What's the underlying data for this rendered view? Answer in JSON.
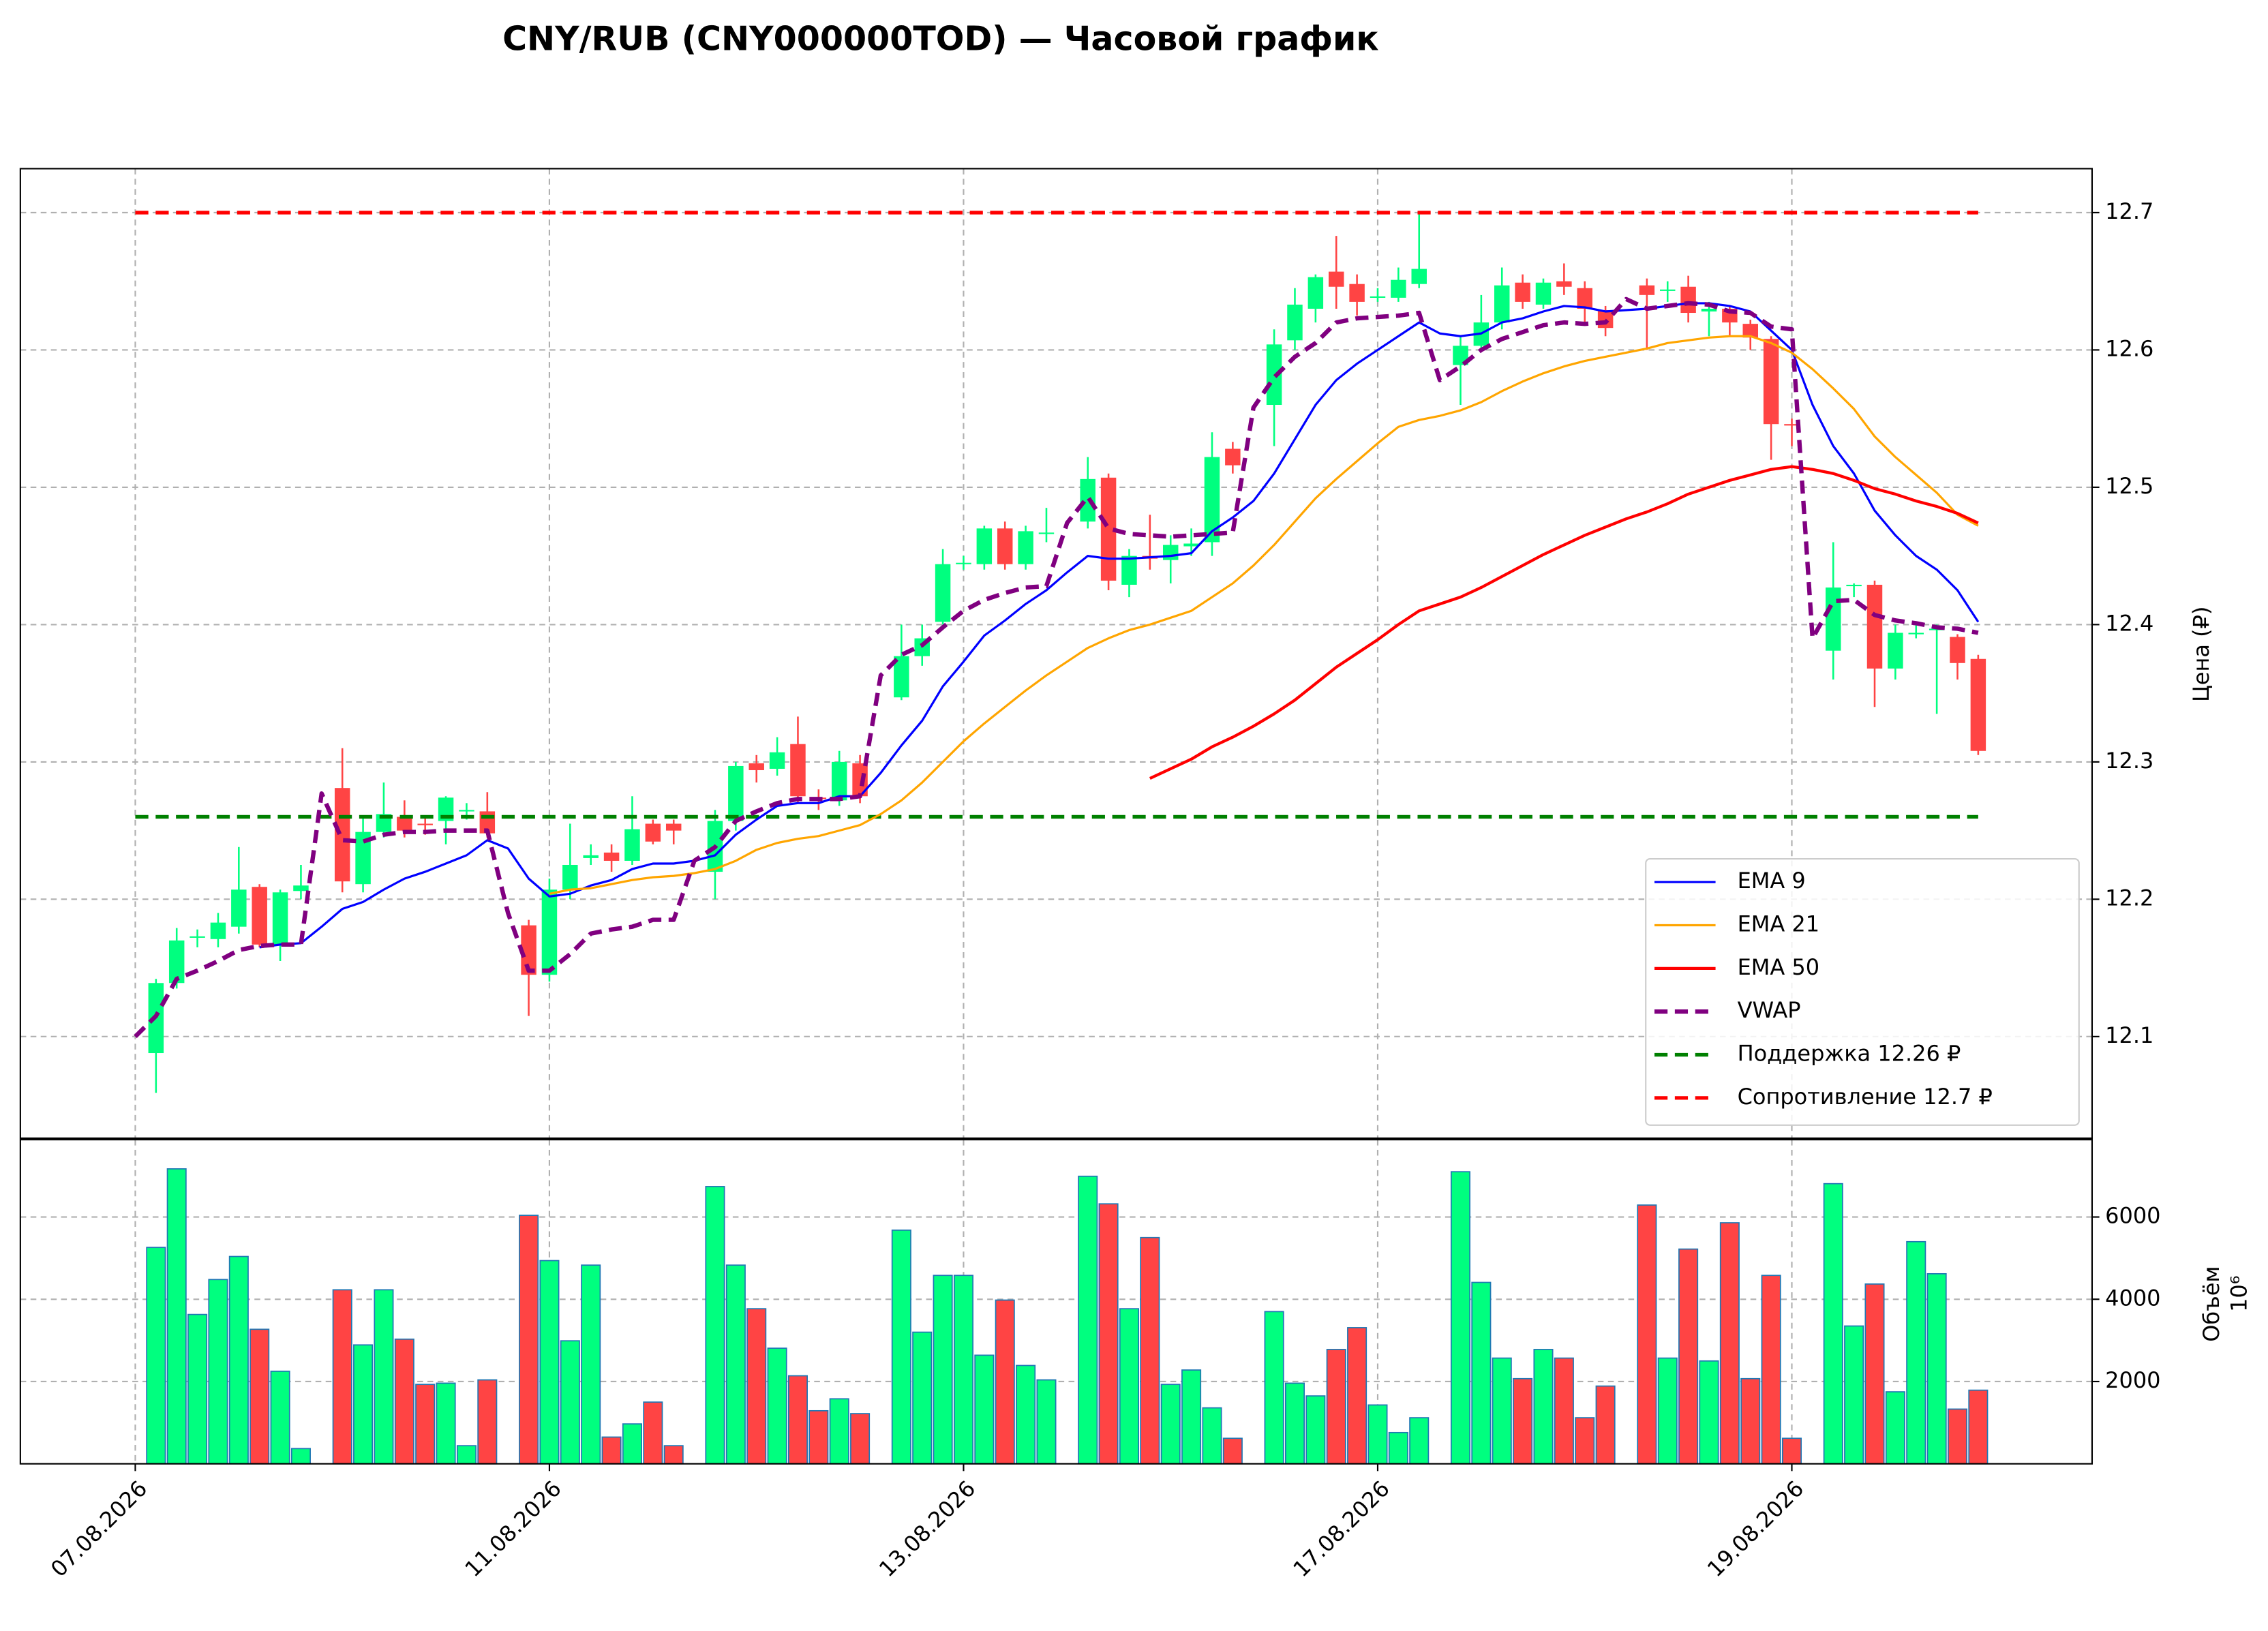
{
  "chart_data": [
    {
      "type": "candlestick",
      "title": "CNY/RUB (CNY000000TOD) — Часовой график",
      "y_label": "Цена (₽)",
      "x": [
        0,
        1,
        2,
        3,
        4,
        5,
        6,
        7,
        8,
        9,
        10,
        11,
        12,
        13,
        14,
        15,
        16,
        17,
        18,
        19,
        20,
        21,
        22,
        23,
        24,
        25,
        26,
        27,
        28,
        29,
        30,
        31,
        32,
        33,
        34,
        35,
        36,
        37,
        38,
        39,
        40,
        41,
        42,
        43,
        44,
        45,
        46,
        47,
        48,
        49,
        50,
        51,
        52,
        53,
        54,
        55,
        56,
        57,
        58,
        59,
        60,
        61,
        62,
        63,
        64,
        65,
        66,
        67,
        68,
        69,
        70,
        71,
        72,
        73,
        74,
        75,
        76,
        77,
        78,
        79,
        80,
        81,
        82,
        83,
        84,
        85,
        86,
        87,
        88,
        89
      ],
      "open": [
        null,
        12.088,
        12.139,
        12.172,
        12.171,
        12.18,
        12.209,
        12.167,
        12.206,
        null,
        12.281,
        12.211,
        12.249,
        12.26,
        12.255,
        12.257,
        12.264,
        12.264,
        null,
        12.181,
        12.145,
        12.207,
        12.23,
        12.234,
        12.228,
        12.255,
        12.255,
        null,
        12.22,
        12.257,
        12.299,
        12.295,
        12.313,
        12.274,
        12.272,
        12.299,
        null,
        12.347,
        12.377,
        12.402,
        12.444,
        12.444,
        12.47,
        12.444,
        12.466,
        null,
        12.475,
        12.507,
        12.429,
        12.45,
        12.447,
        12.457,
        12.46,
        12.528,
        null,
        12.56,
        12.607,
        12.63,
        12.657,
        12.648,
        12.638,
        12.638,
        12.648,
        null,
        12.589,
        12.603,
        12.62,
        12.649,
        12.633,
        12.65,
        12.645,
        12.629,
        null,
        12.647,
        12.643,
        12.646,
        12.628,
        12.63,
        12.619,
        12.608,
        12.546,
        null,
        12.381,
        12.428,
        12.429,
        12.368,
        12.393,
        12.396,
        12.391,
        12.375
      ],
      "high": [
        null,
        12.142,
        12.179,
        12.178,
        12.19,
        12.238,
        12.211,
        12.207,
        12.225,
        null,
        12.31,
        12.26,
        12.285,
        12.272,
        12.26,
        12.275,
        12.27,
        12.278,
        null,
        12.185,
        12.215,
        12.255,
        12.24,
        12.24,
        12.275,
        12.258,
        12.258,
        null,
        12.265,
        12.3,
        12.305,
        12.318,
        12.333,
        12.28,
        12.308,
        12.305,
        null,
        12.4,
        12.4,
        12.455,
        12.45,
        12.472,
        12.475,
        12.472,
        12.485,
        null,
        12.522,
        12.51,
        12.455,
        12.48,
        12.465,
        12.47,
        12.54,
        12.533,
        null,
        12.615,
        12.645,
        12.655,
        12.683,
        12.655,
        12.645,
        12.66,
        12.7,
        null,
        12.61,
        12.64,
        12.66,
        12.655,
        12.652,
        12.663,
        12.65,
        12.632,
        null,
        12.652,
        12.65,
        12.654,
        12.635,
        12.632,
        12.622,
        12.61,
        12.55,
        null,
        12.46,
        12.43,
        12.432,
        12.4,
        12.4,
        12.4,
        12.393,
        12.378
      ],
      "low": [
        null,
        12.059,
        12.135,
        12.165,
        12.165,
        12.175,
        12.165,
        12.155,
        12.2,
        null,
        12.205,
        12.205,
        12.245,
        12.245,
        12.247,
        12.24,
        12.258,
        12.245,
        null,
        12.115,
        12.14,
        12.2,
        12.225,
        12.22,
        12.225,
        12.24,
        12.24,
        null,
        12.2,
        12.25,
        12.285,
        12.29,
        12.27,
        12.265,
        12.268,
        12.27,
        null,
        12.345,
        12.37,
        12.4,
        12.44,
        12.44,
        12.44,
        12.44,
        12.46,
        null,
        12.47,
        12.425,
        12.42,
        12.44,
        12.43,
        12.45,
        12.45,
        12.51,
        null,
        12.53,
        12.6,
        12.62,
        12.63,
        12.625,
        12.635,
        12.635,
        12.645,
        null,
        12.56,
        12.6,
        12.615,
        12.63,
        12.63,
        12.64,
        12.62,
        12.61,
        null,
        12.6,
        12.635,
        12.62,
        12.61,
        12.61,
        12.6,
        12.52,
        12.53,
        null,
        12.36,
        12.42,
        12.34,
        12.36,
        12.39,
        12.335,
        12.36,
        12.305
      ],
      "close": [
        null,
        12.139,
        12.17,
        12.173,
        12.183,
        12.207,
        12.167,
        12.205,
        12.21,
        null,
        12.213,
        12.249,
        12.262,
        12.25,
        12.254,
        12.274,
        12.265,
        12.248,
        null,
        12.145,
        12.207,
        12.225,
        12.232,
        12.228,
        12.251,
        12.242,
        12.25,
        null,
        12.257,
        12.297,
        12.294,
        12.307,
        12.275,
        12.273,
        12.3,
        12.275,
        null,
        12.377,
        12.39,
        12.444,
        12.445,
        12.47,
        12.444,
        12.468,
        12.467,
        null,
        12.506,
        12.432,
        12.45,
        12.448,
        12.458,
        12.459,
        12.522,
        12.516,
        null,
        12.604,
        12.633,
        12.653,
        12.646,
        12.635,
        12.639,
        12.651,
        12.659,
        null,
        12.603,
        12.62,
        12.647,
        12.635,
        12.649,
        12.646,
        12.63,
        12.616,
        null,
        12.64,
        12.644,
        12.627,
        12.63,
        12.62,
        12.609,
        12.546,
        12.545,
        null,
        12.427,
        12.429,
        12.368,
        12.394,
        12.394,
        12.397,
        12.372,
        12.308
      ],
      "up_color": "#00ff7f",
      "down_color": "#ff4444",
      "series": [
        {
          "name": "EMA 9",
          "color": "#0000ff",
          "style": "solid",
          "values": [
            null,
            null,
            null,
            null,
            null,
            null,
            12.165,
            12.167,
            12.168,
            12.18,
            12.193,
            12.198,
            12.207,
            12.215,
            12.22,
            12.226,
            12.232,
            12.243,
            12.237,
            12.215,
            12.202,
            12.204,
            12.21,
            12.214,
            12.222,
            12.226,
            12.226,
            12.228,
            12.232,
            12.247,
            12.258,
            12.268,
            12.27,
            12.27,
            12.275,
            12.275,
            12.292,
            12.312,
            12.33,
            12.355,
            12.373,
            12.392,
            12.403,
            12.415,
            12.425,
            12.438,
            12.45,
            12.448,
            12.448,
            12.449,
            12.45,
            12.452,
            12.468,
            12.478,
            12.49,
            12.51,
            12.535,
            12.56,
            12.578,
            12.59,
            12.6,
            12.61,
            12.62,
            12.612,
            12.61,
            12.612,
            12.62,
            12.623,
            12.628,
            12.632,
            12.631,
            12.628,
            12.629,
            12.63,
            12.632,
            12.634,
            12.634,
            12.632,
            12.628,
            12.614,
            12.6,
            12.56,
            12.53,
            12.51,
            12.483,
            12.465,
            12.45,
            12.44,
            12.425,
            12.402
          ]
        },
        {
          "name": "EMA 21",
          "color": "#ffa500",
          "style": "solid",
          "values": [
            null,
            null,
            null,
            null,
            null,
            null,
            null,
            null,
            null,
            null,
            null,
            null,
            null,
            null,
            null,
            null,
            null,
            null,
            null,
            null,
            12.204,
            12.207,
            12.208,
            12.211,
            12.214,
            12.216,
            12.217,
            12.219,
            12.222,
            12.228,
            12.236,
            12.241,
            12.244,
            12.246,
            12.25,
            12.254,
            12.262,
            12.272,
            12.285,
            12.3,
            12.315,
            12.328,
            12.34,
            12.352,
            12.363,
            12.373,
            12.383,
            12.39,
            12.396,
            12.4,
            12.405,
            12.41,
            12.42,
            12.43,
            12.443,
            12.458,
            12.475,
            12.492,
            12.506,
            12.519,
            12.532,
            12.544,
            12.549,
            12.552,
            12.556,
            12.562,
            12.57,
            12.577,
            12.583,
            12.588,
            12.592,
            12.595,
            12.598,
            12.601,
            12.605,
            12.607,
            12.609,
            12.61,
            12.61,
            12.605,
            12.598,
            12.586,
            12.572,
            12.557,
            12.537,
            12.522,
            12.509,
            12.496,
            12.48,
            12.472
          ]
        },
        {
          "name": "EMA 50",
          "color": "#ff0000",
          "style": "solid",
          "values": [
            null,
            null,
            null,
            null,
            null,
            null,
            null,
            null,
            null,
            null,
            null,
            null,
            null,
            null,
            null,
            null,
            null,
            null,
            null,
            null,
            null,
            null,
            null,
            null,
            null,
            null,
            null,
            null,
            null,
            null,
            null,
            null,
            null,
            null,
            null,
            null,
            null,
            null,
            null,
            null,
            null,
            null,
            null,
            null,
            null,
            null,
            null,
            null,
            null,
            12.288,
            12.295,
            12.302,
            12.311,
            12.318,
            12.326,
            12.335,
            12.345,
            12.357,
            12.369,
            12.379,
            12.389,
            12.4,
            12.41,
            12.415,
            12.42,
            12.427,
            12.435,
            12.443,
            12.451,
            12.458,
            12.465,
            12.471,
            12.477,
            12.482,
            12.488,
            12.495,
            12.5,
            12.505,
            12.509,
            12.513,
            12.515,
            12.513,
            12.51,
            12.505,
            12.499,
            12.495,
            12.49,
            12.486,
            12.481,
            12.474
          ]
        },
        {
          "name": "VWAP",
          "color": "#800080",
          "style": "dashed",
          "values": [
            12.1,
            12.115,
            12.142,
            12.148,
            12.155,
            12.163,
            12.166,
            12.167,
            12.167,
            12.277,
            12.243,
            12.242,
            12.247,
            12.249,
            12.249,
            12.25,
            12.25,
            12.25,
            12.19,
            12.148,
            12.148,
            12.16,
            12.175,
            12.178,
            12.18,
            12.185,
            12.185,
            12.228,
            12.238,
            12.257,
            12.264,
            12.27,
            12.273,
            12.273,
            12.273,
            12.275,
            12.363,
            12.378,
            12.385,
            12.398,
            12.41,
            12.418,
            12.423,
            12.427,
            12.428,
            12.474,
            12.493,
            12.47,
            12.466,
            12.465,
            12.464,
            12.465,
            12.466,
            12.467,
            12.558,
            12.58,
            12.595,
            12.605,
            12.62,
            12.623,
            12.624,
            12.625,
            12.627,
            12.578,
            12.588,
            12.6,
            12.608,
            12.613,
            12.618,
            12.62,
            12.619,
            12.62,
            12.637,
            12.63,
            12.632,
            12.634,
            12.633,
            12.628,
            12.627,
            12.617,
            12.615,
            12.39,
            12.417,
            12.418,
            12.407,
            12.403,
            12.401,
            12.398,
            12.397,
            12.394
          ]
        }
      ],
      "levels": [
        {
          "name": "Поддержка 12.26 ₽",
          "value": 12.26,
          "color": "#008000",
          "style": "dashed"
        },
        {
          "name": "Сопротивление 12.7 ₽",
          "value": 12.7,
          "color": "#ff0000",
          "style": "dashed"
        }
      ],
      "xlim": [
        -5.55,
        94.5
      ],
      "ylim": [
        12.026,
        12.732
      ],
      "yticks": [
        12.1,
        12.2,
        12.3,
        12.4,
        12.5,
        12.6,
        12.7
      ],
      "grid": true,
      "legend": "lower right"
    },
    {
      "type": "bar",
      "y_label": "Объём",
      "y_offset_label": "10⁶",
      "x": [
        0,
        1,
        2,
        3,
        4,
        5,
        6,
        7,
        8,
        9,
        10,
        11,
        12,
        13,
        14,
        15,
        16,
        17,
        18,
        19,
        20,
        21,
        22,
        23,
        24,
        25,
        26,
        27,
        28,
        29,
        30,
        31,
        32,
        33,
        34,
        35,
        36,
        37,
        38,
        39,
        40,
        41,
        42,
        43,
        44,
        45,
        46,
        47,
        48,
        49,
        50,
        51,
        52,
        53,
        54,
        55,
        56,
        57,
        58,
        59,
        60,
        61,
        62,
        63,
        64,
        65,
        66,
        67,
        68,
        69,
        70,
        71,
        72,
        73,
        74,
        75,
        76,
        77,
        78,
        79,
        80,
        81,
        82,
        83,
        84,
        85,
        86,
        87,
        88,
        89
      ],
      "values": [
        null,
        5260,
        7170,
        3630,
        4480,
        5040,
        3270,
        2250,
        370,
        null,
        4230,
        2890,
        4230,
        3030,
        1930,
        1960,
        440,
        2040,
        null,
        6040,
        4940,
        2990,
        4830,
        650,
        970,
        1500,
        440,
        null,
        6740,
        4830,
        3770,
        2810,
        2140,
        1290,
        1580,
        1220,
        null,
        5680,
        3200,
        4580,
        4580,
        2640,
        3980,
        2390,
        2040,
        null,
        6990,
        6320,
        3770,
        5500,
        1930,
        2280,
        1360,
        620,
        null,
        3700,
        1960,
        1650,
        2780,
        3310,
        1430,
        760,
        1120,
        null,
        7100,
        4410,
        2570,
        2070,
        2780,
        2570,
        1120,
        1890,
        null,
        6290,
        2570,
        5220,
        2500,
        5860,
        2070,
        4580,
        620,
        null,
        6810,
        3350,
        4370,
        1750,
        5400,
        4620,
        1330,
        1790
      ],
      "edge_color": "#1f77b4",
      "xlim": [
        -5.55,
        94.5
      ],
      "ylim": [
        0,
        7880
      ],
      "yticks": [
        2000,
        4000,
        6000
      ],
      "xticks": [
        {
          "value": 0,
          "label": "07.08.2026"
        },
        {
          "value": 20,
          "label": "11.08.2026"
        },
        {
          "value": 40,
          "label": "13.08.2026"
        },
        {
          "value": 60,
          "label": "17.08.2026"
        },
        {
          "value": 80,
          "label": "19.08.2026"
        }
      ],
      "grid": true
    }
  ]
}
